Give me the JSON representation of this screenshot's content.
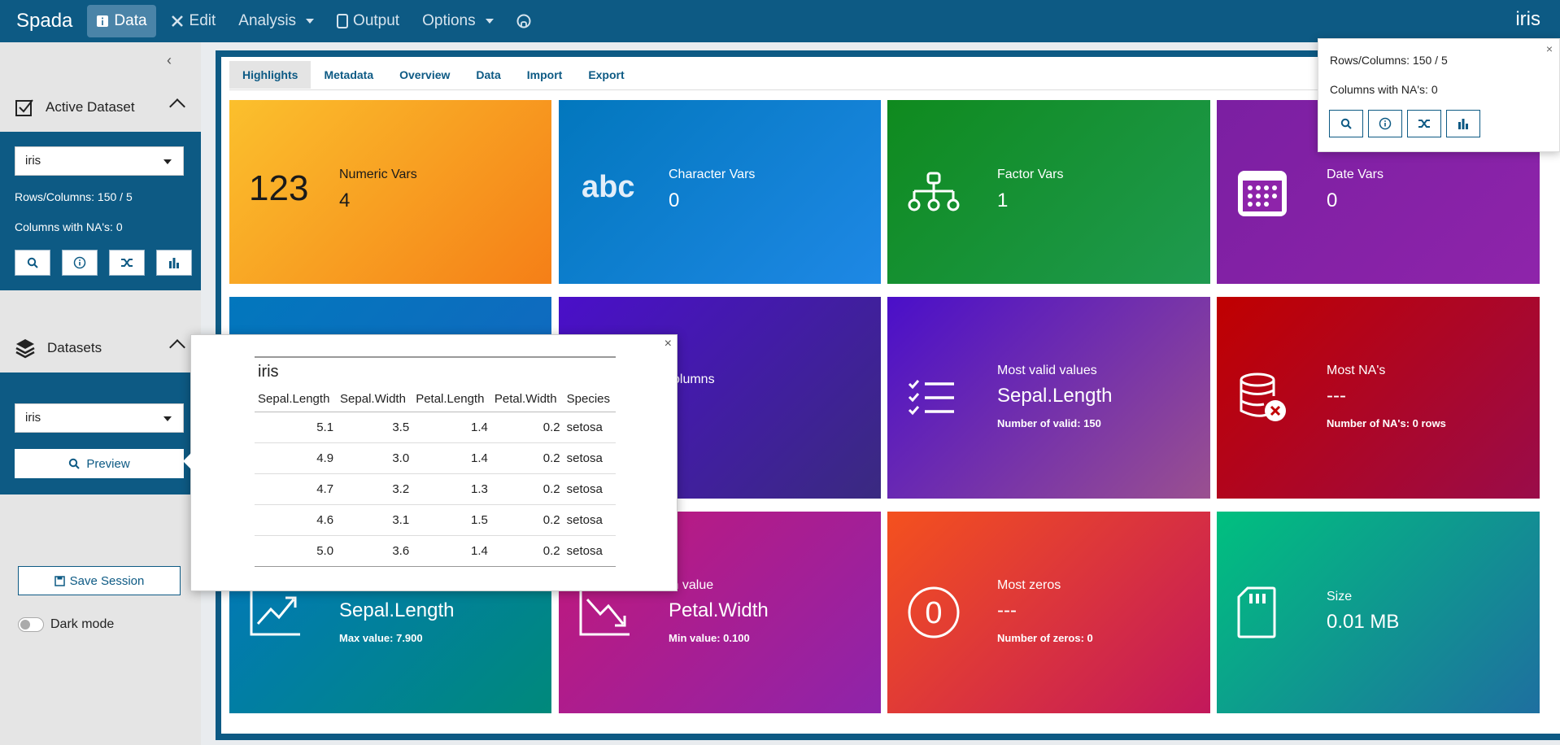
{
  "navbar": {
    "brand": "Spada",
    "items": [
      {
        "label": "Data",
        "icon": "info-icon",
        "active": true
      },
      {
        "label": "Edit",
        "icon": "tools-icon"
      },
      {
        "label": "Analysis",
        "dropdown": true
      },
      {
        "label": "Output",
        "icon": "tablet-icon"
      },
      {
        "label": "Options",
        "dropdown": true
      }
    ],
    "github_icon": "github-icon",
    "dataset_name": "iris"
  },
  "sidebar": {
    "active_dataset": {
      "title": "Active Dataset",
      "selected": "iris",
      "rows_columns": "Rows/Columns: 150 / 5",
      "columns_na": "Columns with NA's: 0"
    },
    "datasets": {
      "title": "Datasets",
      "selected": "iris",
      "preview_label": "Preview"
    },
    "save_session_label": "Save Session",
    "dark_mode_label": "Dark mode"
  },
  "tabs": [
    "Highlights",
    "Metadata",
    "Overview",
    "Data",
    "Import",
    "Export"
  ],
  "cards": {
    "numeric": {
      "icon_text": "123",
      "label": "Numeric Vars",
      "value": "4"
    },
    "character": {
      "icon_text": "abc",
      "label": "Character Vars",
      "value": "0"
    },
    "factor": {
      "label": "Factor Vars",
      "value": "1"
    },
    "date": {
      "label": "Date Vars",
      "value": "0"
    },
    "columns": {
      "label": "olumns"
    },
    "valid": {
      "label": "Most valid values",
      "value": "Sepal.Length",
      "sub": "Number of valid: 150"
    },
    "na": {
      "label": "Most NA's",
      "value": "---",
      "sub": "Number of NA's: 0 rows"
    },
    "max": {
      "value": "Sepal.Length",
      "sub": "Max value: 7.900"
    },
    "min": {
      "label": "in value",
      "value": "Petal.Width",
      "sub": "Min value: 0.100"
    },
    "zeros": {
      "label": "Most zeros",
      "value": "---",
      "sub": "Number of zeros: 0"
    },
    "size": {
      "label": "Size",
      "value": "0.01 MB"
    }
  },
  "popover": {
    "rows_columns": "Rows/Columns: 150 / 5",
    "columns_na": "Columns with NA's: 0",
    "close": "×"
  },
  "preview": {
    "title": "iris",
    "close": "×",
    "columns": [
      "Sepal.Length",
      "Sepal.Width",
      "Petal.Length",
      "Petal.Width",
      "Species"
    ],
    "rows": [
      [
        "5.1",
        "3.5",
        "1.4",
        "0.2",
        "setosa"
      ],
      [
        "4.9",
        "3.0",
        "1.4",
        "0.2",
        "setosa"
      ],
      [
        "4.7",
        "3.2",
        "1.3",
        "0.2",
        "setosa"
      ],
      [
        "4.6",
        "3.1",
        "1.5",
        "0.2",
        "setosa"
      ],
      [
        "5.0",
        "3.6",
        "1.4",
        "0.2",
        "setosa"
      ]
    ]
  }
}
